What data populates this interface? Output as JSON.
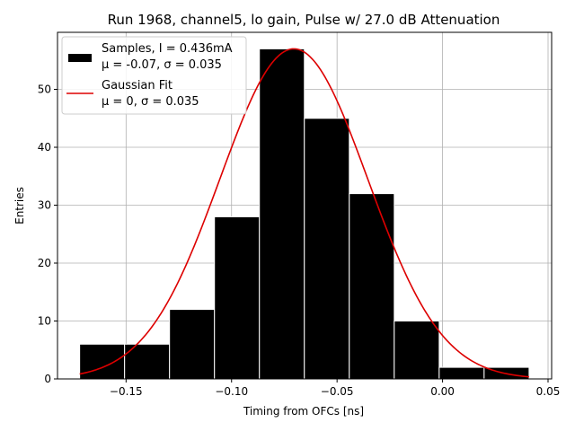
{
  "chart_data": {
    "type": "bar",
    "title": "Run 1968, channel5, lo gain, Pulse w/ 27.0 dB Attenuation",
    "xlabel": "Timing from OFCs [ns]",
    "ylabel": "Entries",
    "xlim": [
      -0.1825,
      0.0517
    ],
    "ylim": [
      0,
      59.85
    ],
    "grid": true,
    "legend_position": "top-left",
    "bin_edges": [
      -0.172,
      -0.1507,
      -0.1294,
      -0.1081,
      -0.0868,
      -0.0655,
      -0.0442,
      -0.0229,
      -0.0016,
      0.0197,
      0.041
    ],
    "values": [
      6,
      6,
      12,
      28,
      57,
      45,
      32,
      10,
      2,
      2
    ],
    "xticks": [
      -0.15,
      -0.1,
      -0.05,
      0.0,
      0.05
    ],
    "xtick_labels": [
      "−0.15",
      "−0.10",
      "−0.05",
      "0.00",
      "0.05"
    ],
    "yticks": [
      0,
      10,
      20,
      30,
      40,
      50
    ],
    "ytick_labels": [
      "0",
      "10",
      "20",
      "30",
      "40",
      "50"
    ],
    "series": [
      {
        "name": "Samples, I = 0.436mA",
        "stats": "μ = -0.07, σ = 0.035",
        "kind": "histogram",
        "color": "#000000"
      },
      {
        "name": "Gaussian Fit",
        "stats": "μ = 0, σ = 0.035",
        "kind": "curve",
        "color": "#dd0000",
        "mean": -0.0705,
        "sigma": 0.035,
        "amplitude": 57,
        "x_range": [
          -0.172,
          0.041
        ]
      }
    ]
  }
}
